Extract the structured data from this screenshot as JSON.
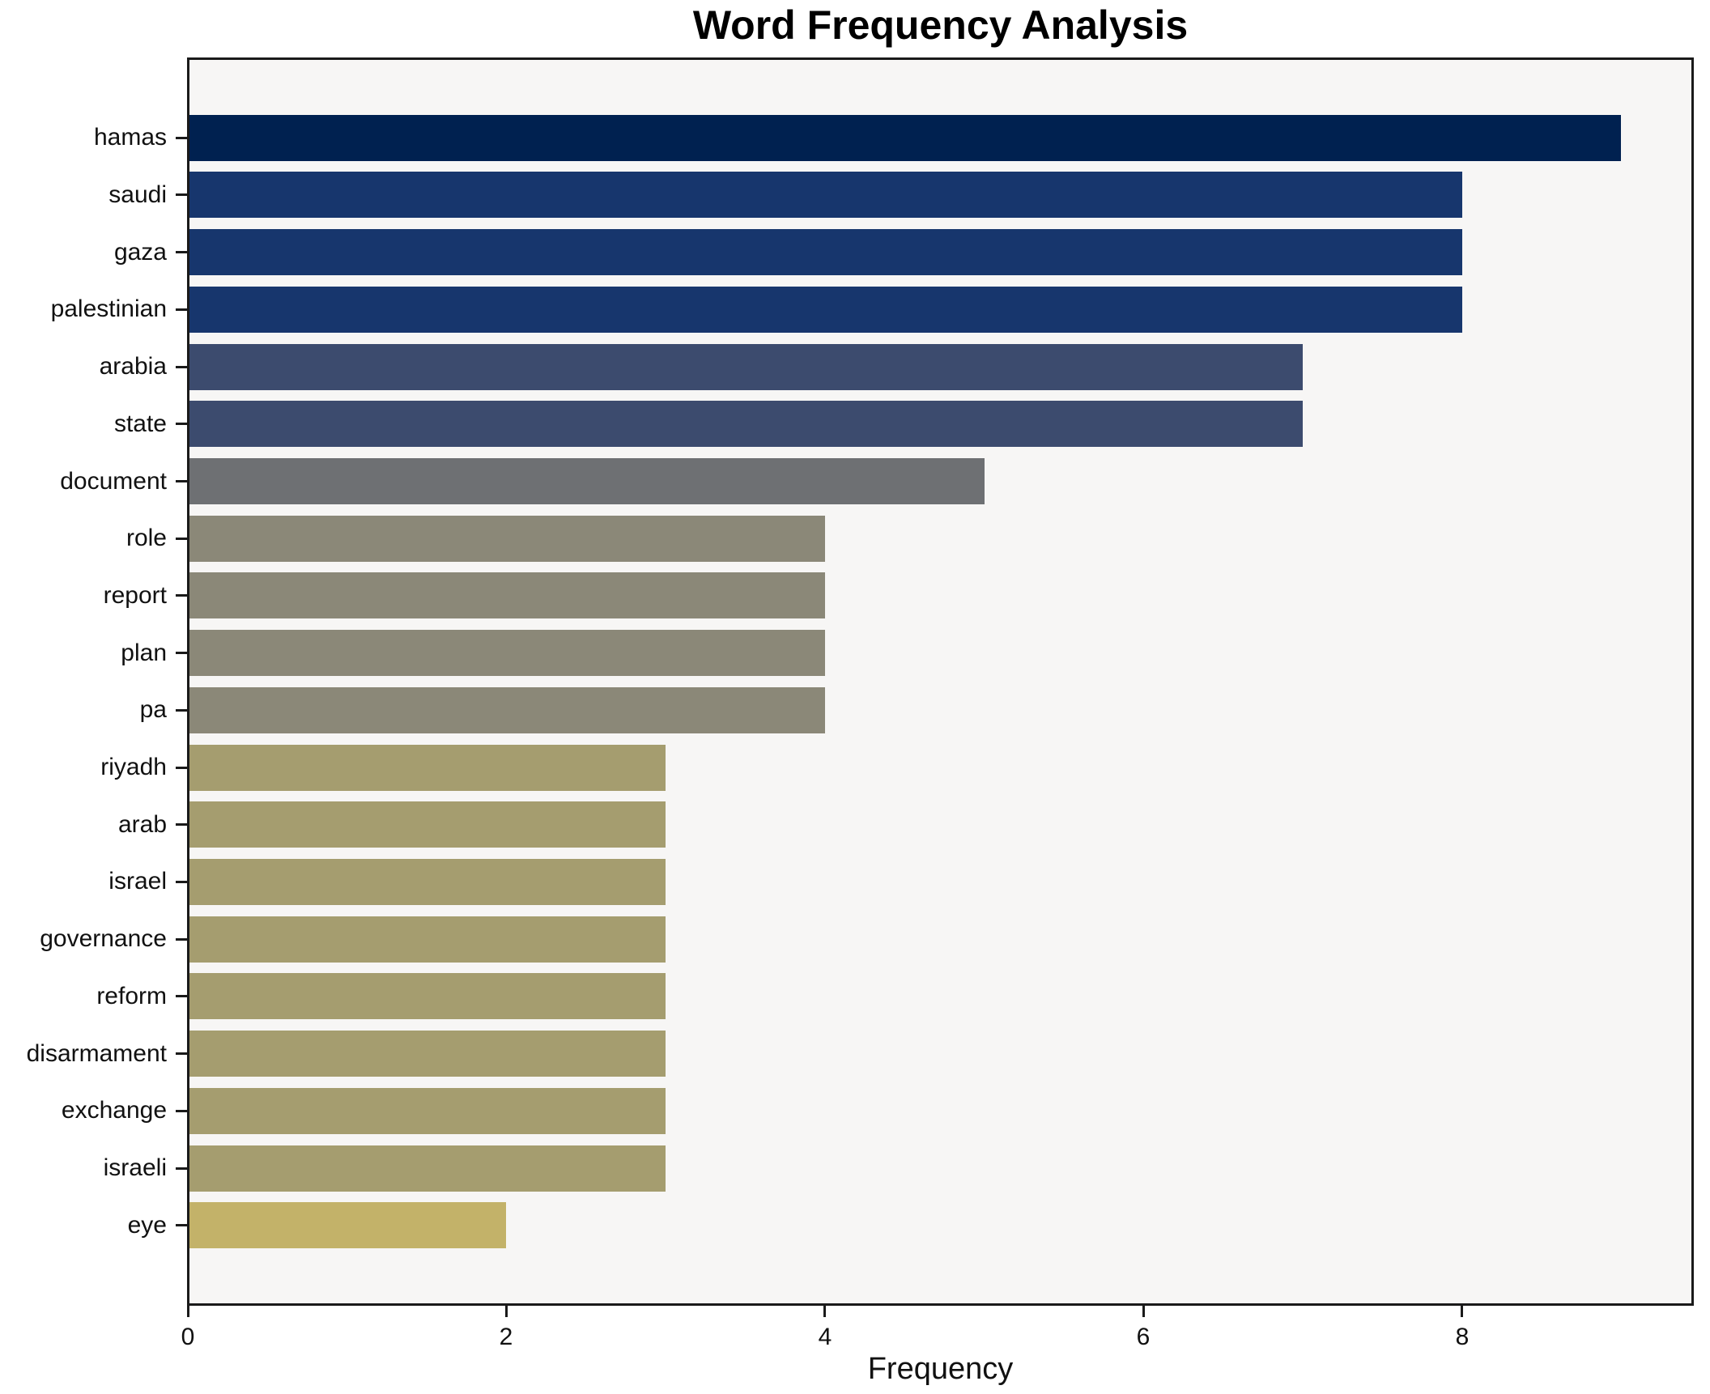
{
  "title": "Word Frequency Analysis",
  "chart_data": {
    "type": "bar",
    "orientation": "horizontal",
    "title": "Word Frequency Analysis",
    "xlabel": "Frequency",
    "ylabel": "",
    "categories": [
      "hamas",
      "saudi",
      "gaza",
      "palestinian",
      "arabia",
      "state",
      "document",
      "role",
      "report",
      "plan",
      "pa",
      "riyadh",
      "arab",
      "israel",
      "governance",
      "reform",
      "disarmament",
      "exchange",
      "israeli",
      "eye"
    ],
    "values": [
      9,
      8,
      8,
      8,
      7,
      7,
      5,
      4,
      4,
      4,
      4,
      3,
      3,
      3,
      3,
      3,
      3,
      3,
      3,
      2
    ],
    "bar_colors": [
      "#002150",
      "#17366d",
      "#17366d",
      "#17366d",
      "#3c4b6e",
      "#3c4b6e",
      "#6e7073",
      "#8b8878",
      "#8b8878",
      "#8b8878",
      "#8b8878",
      "#a59d6f",
      "#a59d6f",
      "#a59d6f",
      "#a59d6f",
      "#a59d6f",
      "#a59d6f",
      "#a59d6f",
      "#a59d6f",
      "#c3b269"
    ],
    "xlim": [
      0,
      9.45
    ],
    "xticks": [
      0,
      2,
      4,
      6,
      8
    ],
    "xtick_labels": [
      "0",
      "2",
      "4",
      "6",
      "8"
    ],
    "grid": false,
    "legend": null,
    "plot_background": "#f7f6f5",
    "figure_background": "#ffffff",
    "frame_color": "#1a1a1a",
    "text_color": "#000000"
  }
}
